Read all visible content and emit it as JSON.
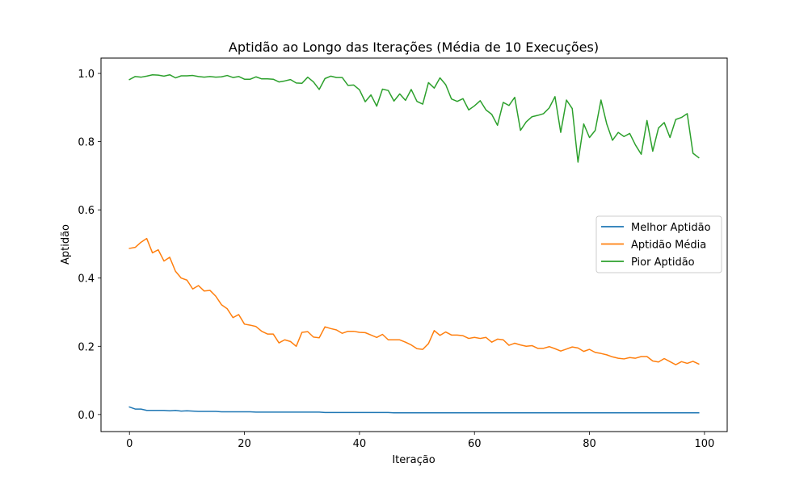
{
  "chart_data": {
    "type": "line",
    "title": "Aptidão ao Longo das Iterações (Média de 10 Execuções)",
    "xlabel": "Iteração",
    "ylabel": "Aptidão",
    "xlim": [
      -4.95,
      103.95
    ],
    "ylim": [
      -0.05,
      1.045
    ],
    "xticks": [
      0,
      20,
      40,
      60,
      80,
      100
    ],
    "yticks": [
      0.0,
      0.2,
      0.4,
      0.6,
      0.8,
      1.0
    ],
    "xtick_labels": [
      "0",
      "20",
      "40",
      "60",
      "80",
      "100"
    ],
    "ytick_labels": [
      "0.0",
      "0.2",
      "0.4",
      "0.6",
      "0.8",
      "1.0"
    ],
    "grid": false,
    "legend_position": "center-right",
    "series": [
      {
        "name": "Melhor Aptidão",
        "color": "#1f77b4",
        "values": [
          0.022,
          0.016,
          0.016,
          0.012,
          0.012,
          0.012,
          0.012,
          0.011,
          0.012,
          0.01,
          0.011,
          0.01,
          0.009,
          0.009,
          0.009,
          0.009,
          0.008,
          0.008,
          0.008,
          0.008,
          0.008,
          0.008,
          0.007,
          0.007,
          0.007,
          0.007,
          0.007,
          0.007,
          0.007,
          0.007,
          0.007,
          0.007,
          0.007,
          0.007,
          0.006,
          0.006,
          0.006,
          0.006,
          0.006,
          0.006,
          0.006,
          0.006,
          0.006,
          0.006,
          0.006,
          0.006,
          0.005,
          0.005,
          0.005,
          0.005,
          0.005,
          0.005,
          0.005,
          0.005,
          0.005,
          0.005,
          0.005,
          0.005,
          0.005,
          0.005,
          0.005,
          0.005,
          0.005,
          0.005,
          0.005,
          0.005,
          0.005,
          0.005,
          0.005,
          0.005,
          0.005,
          0.005,
          0.005,
          0.005,
          0.005,
          0.005,
          0.005,
          0.005,
          0.005,
          0.005,
          0.005,
          0.005,
          0.005,
          0.005,
          0.005,
          0.005,
          0.005,
          0.005,
          0.005,
          0.005,
          0.005,
          0.005,
          0.005,
          0.005,
          0.005,
          0.005,
          0.005,
          0.005,
          0.005,
          0.005
        ]
      },
      {
        "name": "Aptidão Média",
        "color": "#ff7f0e",
        "values": [
          0.487,
          0.49,
          0.505,
          0.516,
          0.474,
          0.483,
          0.45,
          0.461,
          0.42,
          0.4,
          0.394,
          0.368,
          0.378,
          0.362,
          0.364,
          0.347,
          0.322,
          0.31,
          0.284,
          0.293,
          0.265,
          0.262,
          0.258,
          0.244,
          0.236,
          0.236,
          0.21,
          0.219,
          0.214,
          0.2,
          0.241,
          0.243,
          0.227,
          0.225,
          0.257,
          0.252,
          0.248,
          0.238,
          0.244,
          0.244,
          0.241,
          0.24,
          0.233,
          0.226,
          0.235,
          0.219,
          0.219,
          0.219,
          0.212,
          0.204,
          0.193,
          0.191,
          0.208,
          0.246,
          0.232,
          0.242,
          0.233,
          0.233,
          0.231,
          0.223,
          0.226,
          0.223,
          0.226,
          0.212,
          0.221,
          0.219,
          0.203,
          0.209,
          0.204,
          0.2,
          0.202,
          0.194,
          0.194,
          0.199,
          0.193,
          0.186,
          0.192,
          0.198,
          0.195,
          0.185,
          0.191,
          0.182,
          0.179,
          0.175,
          0.169,
          0.165,
          0.163,
          0.167,
          0.165,
          0.17,
          0.17,
          0.157,
          0.154,
          0.164,
          0.155,
          0.146,
          0.155,
          0.15,
          0.156,
          0.148
        ]
      },
      {
        "name": "Pior Aptidão",
        "color": "#2ca02c",
        "values": [
          0.982,
          0.991,
          0.989,
          0.992,
          0.996,
          0.995,
          0.992,
          0.996,
          0.987,
          0.993,
          0.993,
          0.994,
          0.991,
          0.989,
          0.991,
          0.989,
          0.99,
          0.994,
          0.988,
          0.991,
          0.983,
          0.983,
          0.99,
          0.984,
          0.984,
          0.983,
          0.975,
          0.978,
          0.982,
          0.972,
          0.971,
          0.989,
          0.975,
          0.953,
          0.985,
          0.992,
          0.988,
          0.988,
          0.965,
          0.966,
          0.952,
          0.917,
          0.937,
          0.904,
          0.954,
          0.95,
          0.919,
          0.94,
          0.921,
          0.953,
          0.918,
          0.91,
          0.973,
          0.957,
          0.987,
          0.967,
          0.925,
          0.918,
          0.926,
          0.893,
          0.905,
          0.92,
          0.893,
          0.88,
          0.848,
          0.915,
          0.906,
          0.93,
          0.833,
          0.858,
          0.873,
          0.877,
          0.882,
          0.899,
          0.932,
          0.827,
          0.922,
          0.897,
          0.74,
          0.852,
          0.812,
          0.833,
          0.922,
          0.852,
          0.804,
          0.827,
          0.815,
          0.824,
          0.79,
          0.763,
          0.862,
          0.772,
          0.84,
          0.856,
          0.812,
          0.865,
          0.871,
          0.882,
          0.766,
          0.753
        ]
      }
    ]
  }
}
